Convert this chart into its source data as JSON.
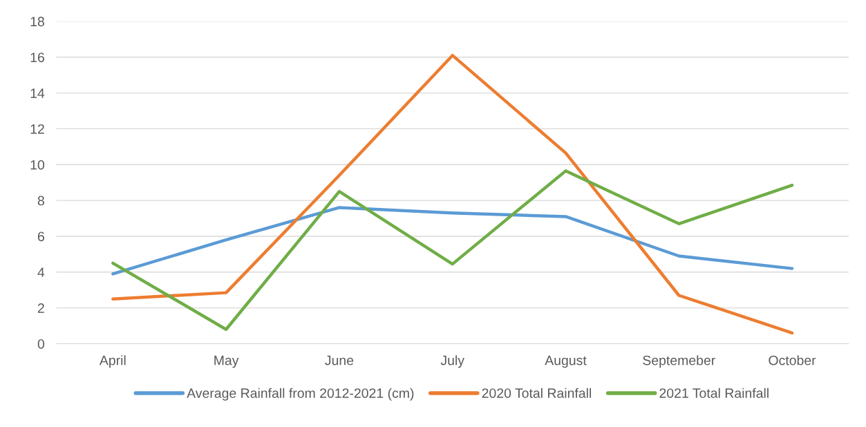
{
  "chart_data": {
    "type": "line",
    "categories": [
      "April",
      "May",
      "June",
      "July",
      "August",
      "Septemeber",
      "October"
    ],
    "series": [
      {
        "name": "Average Rainfall from 2012-2021 (cm)",
        "color": "#5b9bd5",
        "values": [
          3.9,
          5.8,
          7.6,
          7.3,
          7.1,
          4.9,
          4.2
        ]
      },
      {
        "name": "2020 Total Rainfall",
        "color": "#ed7d31",
        "values": [
          2.5,
          2.85,
          9.4,
          16.1,
          10.65,
          2.7,
          0.6
        ]
      },
      {
        "name": "2021 Total Rainfall",
        "color": "#70ad47",
        "values": [
          4.5,
          0.8,
          8.5,
          4.45,
          9.65,
          6.7,
          8.85
        ]
      }
    ],
    "ylim": [
      0,
      18
    ],
    "yticks": [
      0,
      2,
      4,
      6,
      8,
      10,
      12,
      14,
      16,
      18
    ],
    "grid": "y",
    "legend": "bottom",
    "marker": "none",
    "line_style": "solid"
  }
}
